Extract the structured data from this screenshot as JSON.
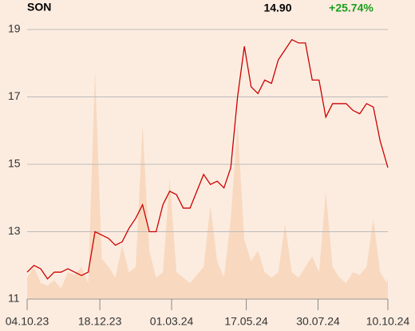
{
  "chart_data": {
    "type": "line",
    "title": "SON",
    "last_value": "14.90",
    "change": "+25.74%",
    "change_color": "#1a9e1a",
    "x": [
      "2023-10-04",
      "2023-10-11",
      "2023-10-18",
      "2023-10-25",
      "2023-11-01",
      "2023-11-08",
      "2023-11-15",
      "2023-11-22",
      "2023-11-29",
      "2023-12-06",
      "2023-12-13",
      "2023-12-20",
      "2023-12-27",
      "2024-01-03",
      "2024-01-10",
      "2024-01-17",
      "2024-01-24",
      "2024-01-31",
      "2024-02-07",
      "2024-02-14",
      "2024-02-21",
      "2024-02-28",
      "2024-03-06",
      "2024-03-13",
      "2024-03-20",
      "2024-03-27",
      "2024-04-03",
      "2024-04-10",
      "2024-04-17",
      "2024-04-24",
      "2024-05-01",
      "2024-05-08",
      "2024-05-15",
      "2024-05-22",
      "2024-05-29",
      "2024-06-05",
      "2024-06-12",
      "2024-06-19",
      "2024-06-26",
      "2024-07-03",
      "2024-07-10",
      "2024-07-17",
      "2024-07-24",
      "2024-07-31",
      "2024-08-07",
      "2024-08-14",
      "2024-08-21",
      "2024-08-28",
      "2024-09-04",
      "2024-09-11",
      "2024-09-18",
      "2024-09-25",
      "2024-10-02",
      "2024-10-09",
      "2024-10-10"
    ],
    "series": [
      {
        "color": "#f8d9c0",
        "axis": "y2",
        "values": [
          8,
          12,
          6,
          5,
          7,
          4,
          10,
          9,
          12,
          6,
          85,
          15,
          12,
          8,
          20,
          10,
          12,
          65,
          18,
          8,
          10,
          45,
          10,
          8,
          6,
          9,
          12,
          35,
          14,
          8,
          30,
          65,
          22,
          14,
          18,
          10,
          8,
          10,
          28,
          10,
          8,
          12,
          16,
          10,
          40,
          12,
          8,
          6,
          10,
          9,
          12,
          30,
          10,
          6,
          8
        ]
      },
      {
        "color": "#cc0000",
        "values": [
          11.8,
          12.0,
          11.9,
          11.6,
          11.8,
          11.8,
          11.9,
          11.8,
          11.7,
          11.8,
          13.0,
          12.9,
          12.8,
          12.6,
          12.7,
          13.1,
          13.4,
          13.8,
          13.0,
          13.0,
          13.8,
          14.2,
          14.1,
          13.7,
          13.7,
          14.2,
          14.7,
          14.4,
          14.5,
          14.3,
          14.9,
          17.0,
          18.5,
          17.3,
          17.1,
          17.5,
          17.4,
          18.1,
          18.4,
          18.7,
          18.6,
          18.6,
          17.5,
          17.5,
          16.4,
          16.8,
          16.8,
          16.8,
          16.6,
          16.5,
          16.8,
          16.7,
          15.7,
          15.0,
          14.9
        ]
      }
    ],
    "xlim": [
      "2023-10-04",
      "2024-10-10"
    ],
    "xticks": [
      {
        "value": "2023-10-04",
        "label": "04.10.23"
      },
      {
        "value": "2023-12-18",
        "label": "18.12.23"
      },
      {
        "value": "2024-03-01",
        "label": "01.03.24"
      },
      {
        "value": "2024-05-17",
        "label": "17.05.24"
      },
      {
        "value": "2024-07-30",
        "label": "30.07.24"
      },
      {
        "value": "2024-10-10",
        "label": "10.10.24"
      }
    ],
    "ylim": [
      11,
      19
    ],
    "yticks": [
      11,
      13,
      15,
      17,
      19
    ],
    "y2lim": [
      0,
      100
    ],
    "grid": true
  }
}
